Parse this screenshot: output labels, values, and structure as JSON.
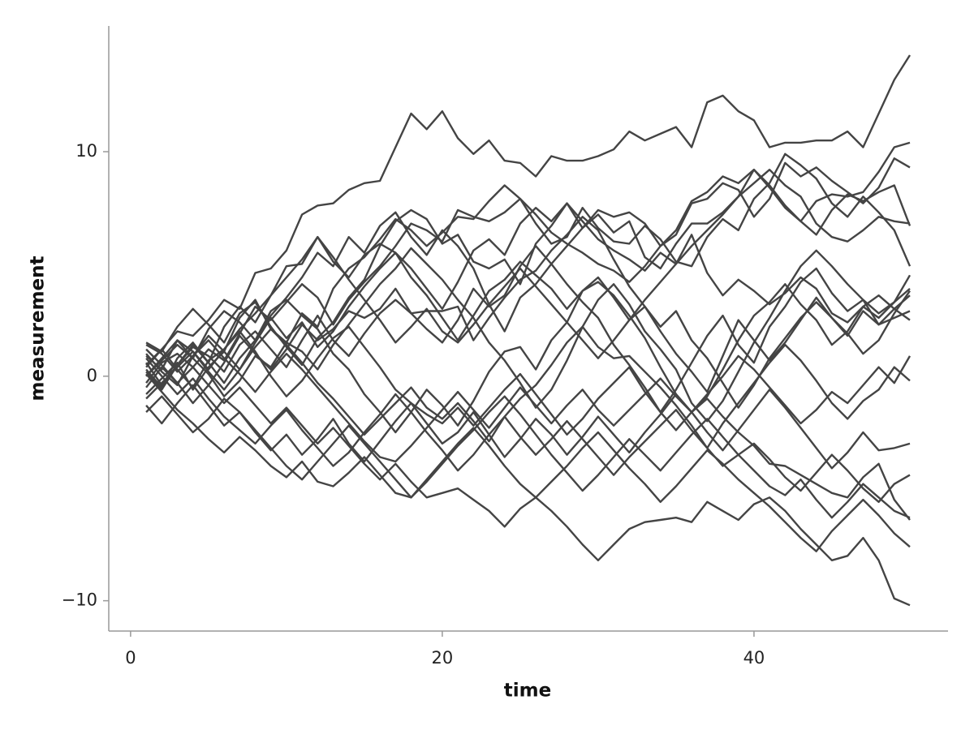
{
  "chart_data": {
    "type": "line",
    "xlabel": "time",
    "ylabel": "measurement",
    "color": "#444444",
    "xlim": [
      -1.4,
      52.45
    ],
    "xticks": [
      0,
      20,
      40
    ],
    "ylim": [
      -11.35,
      15.6
    ],
    "yticks": [
      {
        "value": -10,
        "label": "−10"
      },
      0,
      10
    ],
    "x": [
      1,
      2,
      3,
      4,
      5,
      6,
      7,
      8,
      9,
      10,
      11,
      12,
      13,
      14,
      15,
      16,
      17,
      18,
      19,
      20,
      21,
      22,
      23,
      24,
      25,
      26,
      27,
      28,
      29,
      30,
      31,
      32,
      33,
      34,
      35,
      36,
      37,
      38,
      39,
      40,
      41,
      42,
      43,
      44,
      45,
      46,
      47,
      48,
      49,
      50
    ],
    "series": [
      {
        "values": [
          0.5,
          1.2,
          2.0,
          1.8,
          2.5,
          3.4,
          3.0,
          4.6,
          4.8,
          5.6,
          7.2,
          7.6,
          7.7,
          8.3,
          8.6,
          8.7,
          10.2,
          11.7,
          11.0,
          11.8,
          10.6,
          9.9,
          10.5,
          9.6,
          9.5,
          8.9,
          9.8,
          9.6,
          9.6,
          9.8,
          10.1,
          10.9,
          10.5,
          10.8,
          11.1,
          10.2,
          12.2,
          12.5,
          11.8,
          11.4,
          10.2,
          10.4,
          10.4,
          10.5,
          10.5,
          10.9,
          10.2,
          11.7,
          13.2,
          14.3
        ]
      },
      {
        "values": [
          0.3,
          -0.5,
          0.8,
          1.5,
          0.6,
          2.2,
          3.1,
          2.4,
          3.6,
          4.9,
          5.0,
          6.2,
          5.1,
          4.4,
          5.4,
          5.9,
          5.5,
          4.8,
          3.9,
          3.0,
          4.2,
          5.6,
          6.1,
          5.4,
          6.8,
          7.5,
          6.9,
          7.7,
          6.6,
          7.4,
          7.1,
          7.3,
          6.8,
          5.8,
          6.5,
          7.8,
          8.2,
          8.9,
          8.6,
          9.2,
          8.5,
          7.6,
          6.9,
          7.8,
          8.1,
          8.0,
          8.2,
          9.1,
          10.2,
          10.4
        ]
      },
      {
        "values": [
          1.0,
          0.2,
          -0.4,
          0.9,
          1.8,
          1.1,
          2.6,
          3.4,
          2.1,
          1.5,
          2.8,
          2.2,
          3.9,
          4.8,
          5.3,
          6.1,
          7.0,
          6.5,
          5.8,
          6.4,
          7.1,
          7.0,
          7.8,
          8.5,
          7.9,
          7.2,
          6.4,
          5.9,
          5.5,
          5.0,
          4.7,
          4.2,
          4.9,
          5.8,
          6.3,
          7.7,
          7.9,
          8.6,
          8.3,
          7.1,
          7.9,
          9.5,
          8.9,
          9.3,
          8.7,
          8.2,
          7.7,
          8.4,
          9.7,
          9.3
        ]
      },
      {
        "values": [
          0.0,
          0.7,
          1.4,
          0.8,
          2.1,
          2.9,
          2.4,
          1.6,
          2.7,
          3.5,
          4.4,
          5.5,
          4.9,
          6.2,
          5.5,
          6.7,
          7.3,
          6.2,
          5.4,
          6.5,
          5.8,
          4.8,
          3.2,
          2.0,
          3.5,
          4.1,
          5.0,
          5.8,
          6.6,
          7.2,
          6.4,
          6.9,
          5.3,
          4.8,
          5.9,
          6.8,
          6.8,
          7.3,
          8.0,
          9.2,
          8.4,
          7.5,
          6.9,
          6.3,
          7.4,
          8.1,
          7.8,
          8.2,
          8.5,
          6.7
        ]
      },
      {
        "values": [
          -0.3,
          0.6,
          1.0,
          0.4,
          1.2,
          0.7,
          1.9,
          3.1,
          2.5,
          3.3,
          4.1,
          3.5,
          2.3,
          3.4,
          4.2,
          4.9,
          5.8,
          6.8,
          6.5,
          6.0,
          7.4,
          7.1,
          6.9,
          7.3,
          7.9,
          6.8,
          5.9,
          6.2,
          7.5,
          6.6,
          6.0,
          5.9,
          6.7,
          6.1,
          5.1,
          4.9,
          6.2,
          7.0,
          6.5,
          7.9,
          8.6,
          9.9,
          9.4,
          8.8,
          7.7,
          7.1,
          8.0,
          7.3,
          6.5,
          4.9
        ]
      },
      {
        "values": [
          1.5,
          1.1,
          2.2,
          3.0,
          2.3,
          1.5,
          2.8,
          3.3,
          2.2,
          1.3,
          0.5,
          1.7,
          2.4,
          3.5,
          4.3,
          5.8,
          6.9,
          7.4,
          7.0,
          5.9,
          6.3,
          5.1,
          4.8,
          5.2,
          4.1,
          5.9,
          6.7,
          7.7,
          6.9,
          6.1,
          5.6,
          5.2,
          4.7,
          5.5,
          5.0,
          6.3,
          4.6,
          3.6,
          4.3,
          3.8,
          3.2,
          3.7,
          4.4,
          3.9,
          2.8,
          2.4,
          3.1,
          2.6,
          3.3,
          4.5
        ]
      },
      {
        "values": [
          0.6,
          -0.4,
          0.5,
          1.3,
          0.9,
          0.2,
          1.4,
          2.0,
          1.2,
          0.4,
          1.6,
          2.7,
          1.6,
          0.9,
          1.9,
          2.8,
          3.4,
          2.8,
          2.1,
          1.5,
          2.5,
          3.9,
          3.1,
          3.6,
          4.9,
          5.8,
          5.0,
          4.1,
          3.3,
          2.6,
          1.4,
          0.5,
          -0.5,
          -1.6,
          -0.6,
          0.6,
          1.8,
          2.7,
          1.4,
          0.6,
          2.2,
          3.1,
          4.2,
          4.8,
          3.7,
          2.9,
          3.4,
          2.8,
          3.3,
          3.9
        ]
      },
      {
        "values": [
          -0.8,
          -0.1,
          0.6,
          -0.6,
          0.4,
          1.1,
          0.3,
          1.5,
          2.6,
          1.7,
          2.4,
          1.3,
          2.0,
          3.1,
          4.0,
          4.8,
          5.5,
          4.4,
          3.6,
          2.6,
          1.6,
          2.7,
          3.8,
          4.3,
          5.1,
          4.5,
          3.9,
          3.0,
          3.8,
          4.4,
          3.5,
          2.5,
          3.1,
          2.0,
          1.0,
          0.2,
          -0.7,
          0.9,
          2.5,
          1.6,
          0.7,
          1.5,
          2.5,
          3.5,
          2.6,
          1.9,
          1.0,
          1.6,
          2.8,
          3.8
        ]
      },
      {
        "values": [
          0.9,
          0.3,
          1.6,
          0.8,
          0.1,
          -0.9,
          -0.2,
          0.9,
          0.4,
          1.5,
          1.1,
          0.3,
          1.4,
          2.3,
          3.2,
          4.1,
          4.8,
          5.7,
          5.0,
          4.3,
          3.4,
          2.6,
          1.5,
          0.7,
          -0.3,
          -1.4,
          -0.6,
          0.7,
          2.2,
          3.4,
          4.1,
          3.2,
          2.0,
          1.2,
          0.3,
          -1.2,
          -2.0,
          -1.1,
          0.2,
          1.5,
          2.6,
          3.8,
          4.9,
          5.6,
          4.9,
          4.1,
          3.4,
          2.3,
          3.0,
          3.6
        ]
      },
      {
        "values": [
          -0.5,
          0.4,
          -0.3,
          -1.2,
          -0.4,
          0.6,
          1.8,
          1.0,
          0.3,
          1.2,
          2.3,
          1.6,
          2.1,
          2.9,
          2.6,
          3.0,
          3.9,
          2.8,
          2.9,
          2.9,
          3.1,
          1.6,
          2.6,
          3.5,
          4.3,
          4.7,
          5.6,
          6.3,
          7.1,
          6.5,
          5.2,
          4.0,
          3.1,
          2.2,
          2.9,
          1.6,
          0.8,
          -0.3,
          -1.4,
          -0.4,
          0.8,
          1.7,
          2.6,
          3.3,
          2.6,
          1.8,
          2.9,
          2.3,
          2.6,
          2.9
        ]
      },
      {
        "values": [
          0.2,
          -0.6,
          0.5,
          1.4,
          0.6,
          -0.3,
          0.8,
          1.6,
          2.9,
          3.4,
          2.7,
          2.1,
          1.0,
          0.3,
          -0.8,
          -1.6,
          -2.5,
          -1.6,
          -0.6,
          -1.3,
          -2.2,
          -1.1,
          0.2,
          1.1,
          1.3,
          0.3,
          1.6,
          2.4,
          3.8,
          4.2,
          3.6,
          2.7,
          1.7,
          0.4,
          -0.8,
          -1.6,
          -0.9,
          0.3,
          1.6,
          2.7,
          3.3,
          4.1,
          3.2,
          2.5,
          1.4,
          2.0,
          3.1,
          3.6,
          3.0,
          2.5
        ]
      },
      {
        "values": [
          0.4,
          1.2,
          0.3,
          -0.5,
          0.7,
          1.2,
          2.0,
          1.1,
          0.0,
          -0.9,
          -0.2,
          0.8,
          1.7,
          2.2,
          1.3,
          0.4,
          -0.6,
          -1.2,
          -1.7,
          -2.1,
          -1.4,
          -2.2,
          -1.4,
          -0.6,
          0.1,
          -0.8,
          -1.7,
          -2.6,
          -1.9,
          -1.0,
          -0.3,
          0.4,
          -0.7,
          -1.6,
          -2.4,
          -1.6,
          -0.8,
          0.0,
          0.9,
          0.3,
          -0.5,
          -1.3,
          -2.1,
          -1.5,
          -0.7,
          -1.2,
          -0.4,
          0.4,
          -0.3,
          0.9
        ]
      },
      {
        "values": [
          -1.0,
          -0.3,
          0.4,
          1.1,
          0.2,
          -0.6,
          0.3,
          1.3,
          2.1,
          1.4,
          0.6,
          -0.3,
          -1.0,
          -1.8,
          -2.6,
          -1.9,
          -1.2,
          -0.5,
          -1.4,
          -1.9,
          -1.2,
          -2.0,
          -2.9,
          -1.8,
          -1.0,
          -0.4,
          0.5,
          1.5,
          2.2,
          1.3,
          0.8,
          0.9,
          0.2,
          -0.5,
          -1.3,
          -2.2,
          -3.2,
          -2.1,
          -1.2,
          -0.3,
          0.6,
          1.4,
          0.7,
          -0.2,
          -1.2,
          -1.9,
          -1.1,
          -0.6,
          0.4,
          -0.2
        ]
      },
      {
        "values": [
          -1.3,
          -2.1,
          -1.2,
          -0.4,
          -1.3,
          -2.2,
          -1.6,
          -2.5,
          -3.3,
          -2.6,
          -3.5,
          -2.8,
          -1.9,
          -3.0,
          -3.8,
          -2.9,
          -2.0,
          -1.2,
          -2.1,
          -3.0,
          -2.5,
          -1.6,
          -2.6,
          -3.6,
          -2.8,
          -1.9,
          -2.6,
          -3.5,
          -2.7,
          -1.8,
          -2.6,
          -3.4,
          -2.5,
          -1.7,
          -0.8,
          -1.6,
          -2.5,
          -3.3,
          -2.4,
          -1.5,
          -0.6,
          -1.4,
          -2.3,
          -3.2,
          -4.1,
          -3.4,
          -2.5,
          -3.3,
          -3.2,
          -3.0
        ]
      },
      {
        "values": [
          0.8,
          0.0,
          -0.8,
          -0.1,
          -1.0,
          -1.8,
          -2.4,
          -3.0,
          -2.2,
          -1.5,
          -2.4,
          -3.2,
          -4.0,
          -3.4,
          -2.5,
          -1.7,
          -0.8,
          -1.6,
          -2.5,
          -3.3,
          -4.2,
          -3.5,
          -2.6,
          -1.8,
          -2.7,
          -3.5,
          -2.8,
          -2.0,
          -2.8,
          -3.6,
          -4.4,
          -3.6,
          -2.9,
          -2.2,
          -1.5,
          -2.4,
          -3.2,
          -4.0,
          -3.5,
          -3.0,
          -3.7,
          -4.5,
          -5.1,
          -4.3,
          -3.5,
          -4.2,
          -5.0,
          -5.6,
          -4.8,
          -4.4
        ]
      },
      {
        "values": [
          -1.6,
          -0.9,
          -1.7,
          -2.5,
          -1.9,
          -1.0,
          -1.6,
          -2.4,
          -3.2,
          -4.0,
          -4.6,
          -3.8,
          -3.0,
          -2.2,
          -3.0,
          -3.8,
          -4.6,
          -5.4,
          -4.7,
          -3.9,
          -3.1,
          -2.4,
          -1.6,
          -0.9,
          -1.7,
          -2.6,
          -3.5,
          -4.3,
          -5.1,
          -4.4,
          -3.6,
          -2.8,
          -3.5,
          -4.2,
          -3.4,
          -2.6,
          -1.9,
          -2.7,
          -3.5,
          -4.2,
          -4.9,
          -5.3,
          -4.6,
          -5.5,
          -6.3,
          -5.6,
          -4.8,
          -5.4,
          -6.0,
          -6.3
        ]
      },
      {
        "values": [
          0.1,
          -0.7,
          -1.5,
          -2.1,
          -2.8,
          -3.4,
          -2.7,
          -3.3,
          -4.0,
          -4.5,
          -3.8,
          -4.7,
          -4.9,
          -4.3,
          -3.6,
          -4.4,
          -5.2,
          -5.4,
          -4.6,
          -3.8,
          -3.0,
          -2.3,
          -3.1,
          -4.0,
          -4.8,
          -5.4,
          -4.7,
          -4.0,
          -3.2,
          -2.5,
          -3.3,
          -4.1,
          -4.8,
          -5.6,
          -4.9,
          -4.1,
          -3.3,
          -3.9,
          -4.6,
          -5.2,
          -5.8,
          -6.5,
          -7.2,
          -7.8,
          -6.9,
          -6.2,
          -5.5,
          -6.2,
          -7.0,
          -7.6
        ]
      },
      {
        "values": [
          1.2,
          0.5,
          -0.3,
          0.4,
          -0.4,
          -1.2,
          -0.5,
          -1.3,
          -2.1,
          -1.4,
          -2.2,
          -3.0,
          -2.3,
          -3.1,
          -3.9,
          -4.6,
          -3.9,
          -4.7,
          -5.4,
          -5.2,
          -5.0,
          -5.5,
          -6.0,
          -6.7,
          -5.9,
          -5.4,
          -6.0,
          -6.7,
          -7.5,
          -8.2,
          -7.5,
          -6.8,
          -6.5,
          -6.4,
          -6.3,
          -6.5,
          -5.6,
          -6.0,
          -6.4,
          -5.7,
          -5.4,
          -6.0,
          -6.8,
          -7.5,
          -8.2,
          -8.0,
          -7.2,
          -8.2,
          -9.9,
          -10.2
        ]
      },
      {
        "values": [
          1.4,
          1.0,
          0.2,
          0.9,
          1.6,
          0.8,
          0.1,
          -0.7,
          0.2,
          1.0,
          0.3,
          -0.5,
          -1.3,
          -2.1,
          -2.9,
          -3.6,
          -3.8,
          -3.1,
          -2.3,
          -1.5,
          -0.7,
          -1.5,
          -2.3,
          -1.4,
          -0.5,
          -1.3,
          -2.1,
          -1.3,
          -0.6,
          -1.5,
          -2.2,
          -1.5,
          -0.8,
          -0.1,
          -0.9,
          -1.6,
          -1.0,
          -1.8,
          -2.5,
          -3.1,
          -3.9,
          -4.0,
          -4.4,
          -4.8,
          -5.2,
          -5.4,
          -4.5,
          -3.9,
          -5.5,
          -6.4
        ]
      },
      {
        "values": [
          0.0,
          0.8,
          1.6,
          1.1,
          0.3,
          1.2,
          2.1,
          2.8,
          3.6,
          4.4,
          5.2,
          6.2,
          5.3,
          4.3,
          3.4,
          2.5,
          1.5,
          2.2,
          3.0,
          2.0,
          1.5,
          2.3,
          3.2,
          4.0,
          4.8,
          4.0,
          3.2,
          2.4,
          1.6,
          0.8,
          1.6,
          2.5,
          3.4,
          4.2,
          5.0,
          5.8,
          6.5,
          7.2,
          8.0,
          8.6,
          9.2,
          8.5,
          8.0,
          6.8,
          6.2,
          6.0,
          6.5,
          7.1,
          6.9,
          6.8
        ]
      }
    ]
  }
}
